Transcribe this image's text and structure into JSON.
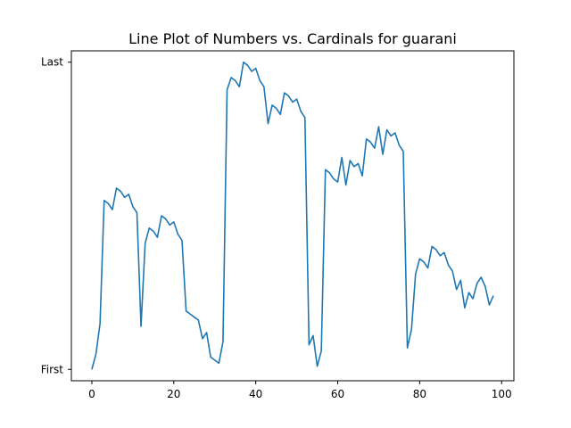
{
  "chart_data": {
    "type": "line",
    "title": "Line Plot of Numbers vs. Cardinals for guarani",
    "xlabel": "",
    "ylabel": "",
    "xlim": [
      -5,
      103
    ],
    "ylim": [
      -0.037,
      1.037
    ],
    "x_ticks": [
      0,
      20,
      40,
      60,
      80,
      100
    ],
    "y_ticks": [
      {
        "value": 0,
        "label": "First"
      },
      {
        "value": 1,
        "label": "Last"
      }
    ],
    "grid": false,
    "line_color": "#1f77b4",
    "series": [
      {
        "x": [
          0,
          1,
          2,
          3,
          4,
          5,
          6,
          7,
          8,
          9,
          10,
          11,
          12,
          13,
          14,
          15,
          16,
          17,
          18,
          19,
          20,
          21,
          22,
          23,
          24,
          25,
          26,
          27,
          28,
          29,
          30,
          31,
          32,
          33,
          34,
          35,
          36,
          37,
          38,
          39,
          40,
          41,
          42,
          43,
          44,
          45,
          46,
          47,
          48,
          49,
          50,
          51,
          52,
          53,
          54,
          55,
          56,
          57,
          58,
          59,
          60,
          61,
          62,
          63,
          64,
          65,
          66,
          67,
          68,
          69,
          70,
          71,
          72,
          73,
          74,
          75,
          76,
          77,
          78,
          79,
          80,
          81,
          82,
          83,
          84,
          85,
          86,
          87,
          88,
          89,
          90,
          91,
          92,
          93,
          94,
          95,
          96,
          97,
          98
        ],
        "y": [
          0.0,
          0.05,
          0.15,
          0.55,
          0.54,
          0.52,
          0.59,
          0.58,
          0.56,
          0.57,
          0.53,
          0.51,
          0.14,
          0.41,
          0.46,
          0.45,
          0.43,
          0.5,
          0.49,
          0.47,
          0.48,
          0.44,
          0.42,
          0.19,
          0.18,
          0.17,
          0.16,
          0.1,
          0.12,
          0.04,
          0.03,
          0.02,
          0.09,
          0.91,
          0.95,
          0.94,
          0.92,
          1.0,
          0.99,
          0.97,
          0.98,
          0.94,
          0.92,
          0.8,
          0.86,
          0.85,
          0.83,
          0.9,
          0.89,
          0.87,
          0.88,
          0.84,
          0.82,
          0.08,
          0.11,
          0.01,
          0.06,
          0.65,
          0.64,
          0.62,
          0.61,
          0.69,
          0.6,
          0.68,
          0.66,
          0.67,
          0.63,
          0.75,
          0.74,
          0.72,
          0.79,
          0.7,
          0.78,
          0.76,
          0.77,
          0.73,
          0.71,
          0.07,
          0.13,
          0.31,
          0.36,
          0.35,
          0.33,
          0.4,
          0.39,
          0.37,
          0.38,
          0.34,
          0.32,
          0.26,
          0.29,
          0.2,
          0.25,
          0.23,
          0.28,
          0.3,
          0.27,
          0.21,
          0.24
        ]
      }
    ]
  }
}
